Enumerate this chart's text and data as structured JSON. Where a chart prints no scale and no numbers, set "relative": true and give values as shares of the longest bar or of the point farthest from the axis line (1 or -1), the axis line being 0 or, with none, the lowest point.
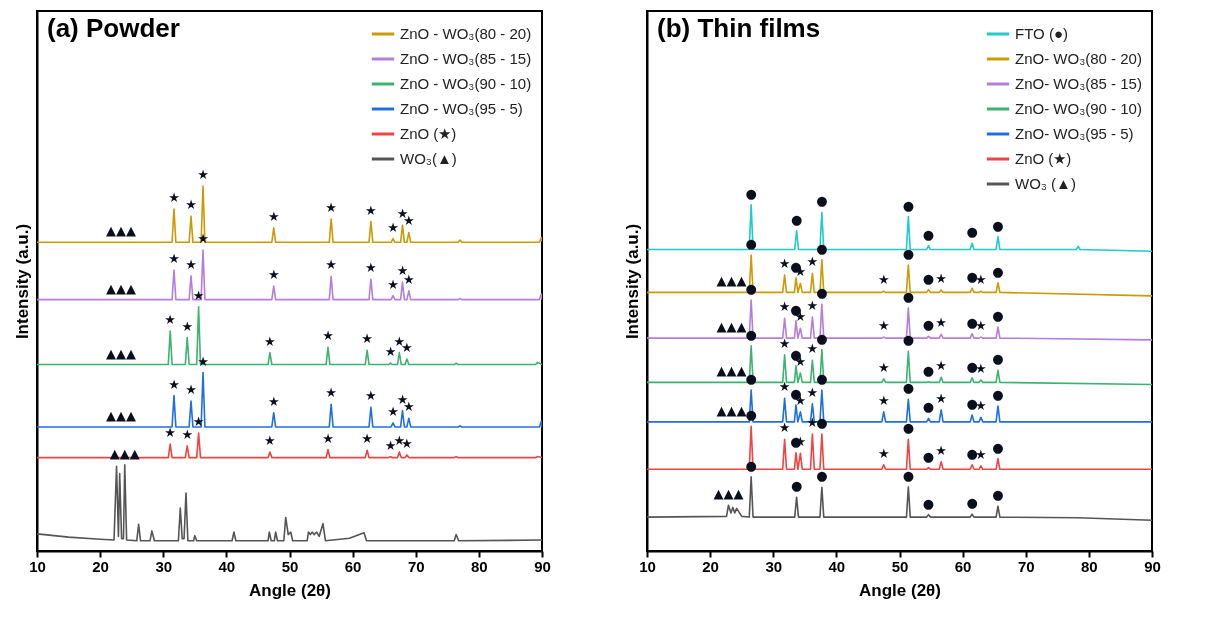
{
  "chart_data": [
    {
      "type": "line",
      "title": "(a) Powder",
      "xlabel": "Angle (2θ)",
      "ylabel": "Intensity (a.u.)",
      "relative": true,
      "tick_labels": "x",
      "legend": "top right",
      "xlim": [
        10,
        90
      ],
      "xticks": [
        10,
        20,
        30,
        40,
        50,
        60,
        70,
        80,
        90
      ],
      "series": [
        {
          "name": "ZnO - WO₃(80 - 20)",
          "color": "#cc9a06",
          "x": [
            10,
            31.4,
            31.7,
            32,
            34.1,
            34.4,
            34.7,
            36,
            36.3,
            36.6,
            47.2,
            47.5,
            47.8,
            56.3,
            56.6,
            56.9,
            62.6,
            62.9,
            63.2,
            66.1,
            66.4,
            66.7,
            67.6,
            67.9,
            68.2,
            68.6,
            68.9,
            69.2,
            76.7,
            77,
            77.3,
            89.6,
            89.9,
            90
          ],
          "values": [
            0.846,
            0.846,
            0.937,
            0.846,
            0.846,
            0.918,
            0.846,
            0.846,
            1.0,
            0.846,
            0.846,
            0.886,
            0.846,
            0.846,
            0.91,
            0.846,
            0.846,
            0.903,
            0.846,
            0.846,
            0.856,
            0.846,
            0.846,
            0.893,
            0.846,
            0.846,
            0.873,
            0.846,
            0.846,
            0.852,
            0.846,
            0.846,
            0.859,
            0.85
          ]
        },
        {
          "name": "ZnO - WO₃(85 - 15)",
          "color": "#b57edc",
          "x": [
            10,
            31.4,
            31.7,
            32,
            34.1,
            34.4,
            34.7,
            36,
            36.3,
            36.6,
            47.2,
            47.5,
            47.8,
            56.3,
            56.6,
            56.9,
            62.6,
            62.9,
            63.2,
            66.1,
            66.4,
            66.7,
            67.6,
            67.9,
            68.2,
            68.6,
            68.9,
            69.2,
            76.7,
            77,
            77.3,
            89.6,
            89.9,
            90
          ],
          "values": [
            0.689,
            0.689,
            0.77,
            0.689,
            0.689,
            0.754,
            0.689,
            0.689,
            0.825,
            0.689,
            0.689,
            0.726,
            0.689,
            0.689,
            0.753,
            0.689,
            0.689,
            0.745,
            0.689,
            0.689,
            0.7,
            0.689,
            0.689,
            0.737,
            0.689,
            0.689,
            0.713,
            0.689,
            0.689,
            0.692,
            0.689,
            0.689,
            0.704,
            0.69
          ]
        },
        {
          "name": "ZnO - WO₃(90 - 10)",
          "color": "#3cb371",
          "x": [
            10,
            30.8,
            31.1,
            31.4,
            33.5,
            33.8,
            34.1,
            35.3,
            35.6,
            35.9,
            46.6,
            46.9,
            47.2,
            55.8,
            56.1,
            56.4,
            62,
            62.3,
            62.6,
            65.7,
            66,
            66.3,
            67.1,
            67.4,
            67.7,
            68.3,
            68.6,
            68.9,
            76.1,
            76.4,
            76.7,
            89,
            89.3,
            90
          ],
          "values": [
            0.511,
            0.511,
            0.603,
            0.511,
            0.511,
            0.585,
            0.511,
            0.511,
            0.669,
            0.511,
            0.511,
            0.544,
            0.511,
            0.511,
            0.558,
            0.511,
            0.511,
            0.55,
            0.511,
            0.511,
            0.515,
            0.511,
            0.511,
            0.544,
            0.511,
            0.511,
            0.526,
            0.511,
            0.511,
            0.515,
            0.511,
            0.511,
            0.517,
            0.511
          ]
        },
        {
          "name": "ZnO - WO₃(95 - 5)",
          "color": "#1f6fe0",
          "x": [
            10,
            31.4,
            31.7,
            32,
            34.1,
            34.4,
            34.7,
            36,
            36.3,
            36.6,
            47.2,
            47.5,
            47.8,
            56.3,
            56.6,
            56.9,
            62.6,
            62.9,
            63.2,
            66.1,
            66.4,
            66.7,
            67.6,
            67.9,
            68.2,
            68.6,
            68.9,
            69.2,
            76.7,
            77,
            77.3,
            89.6,
            89.9,
            90
          ],
          "values": [
            0.34,
            0.34,
            0.426,
            0.34,
            0.34,
            0.411,
            0.34,
            0.34,
            0.489,
            0.34,
            0.34,
            0.379,
            0.34,
            0.34,
            0.402,
            0.34,
            0.34,
            0.394,
            0.34,
            0.34,
            0.351,
            0.34,
            0.34,
            0.385,
            0.34,
            0.34,
            0.364,
            0.34,
            0.34,
            0.343,
            0.34,
            0.34,
            0.356,
            0.34
          ]
        },
        {
          "name": "ZnO (★)",
          "color": "#ef4444",
          "x": [
            10,
            30.8,
            31.1,
            31.4,
            33.5,
            33.8,
            34.1,
            35.3,
            35.6,
            35.9,
            46.6,
            46.9,
            47.2,
            55.8,
            56.1,
            56.4,
            62,
            62.3,
            62.6,
            65.7,
            66,
            66.3,
            67.1,
            67.4,
            67.7,
            68.3,
            68.6,
            68.9,
            76.1,
            76.4,
            76.7,
            89,
            89.3,
            90
          ],
          "values": [
            0.256,
            0.256,
            0.293,
            0.256,
            0.256,
            0.288,
            0.256,
            0.256,
            0.323,
            0.256,
            0.256,
            0.271,
            0.256,
            0.256,
            0.278,
            0.256,
            0.256,
            0.276,
            0.256,
            0.256,
            0.258,
            0.256,
            0.256,
            0.271,
            0.256,
            0.256,
            0.263,
            0.256,
            0.256,
            0.258,
            0.256,
            0.256,
            0.259,
            0.256
          ]
        },
        {
          "name": "WO₃(▲)",
          "color": "#555555",
          "x": [
            10,
            15,
            20,
            22.2,
            22.6,
            22.9,
            23.1,
            23.4,
            23.7,
            23.9,
            24.2,
            25.8,
            26.1,
            26.4,
            27.9,
            28.2,
            28.6,
            32.4,
            32.7,
            33,
            33.3,
            33.6,
            33.9,
            34.8,
            35,
            35.3,
            40.9,
            41.2,
            41.5,
            46.6,
            46.8,
            47.1,
            47.6,
            47.8,
            48.1,
            49.1,
            49.4,
            49.8,
            50.2,
            50.5,
            52.8,
            53,
            53.3,
            53.6,
            53.9,
            54.3,
            54.7,
            55.3,
            55.7,
            59.5,
            61.8,
            62.2,
            76.1,
            76.4,
            76.8,
            90
          ],
          "values": [
            0.047,
            0.038,
            0.032,
            0.03,
            0.232,
            0.04,
            0.212,
            0.034,
            0.034,
            0.236,
            0.03,
            0.028,
            0.073,
            0.028,
            0.028,
            0.055,
            0.028,
            0.028,
            0.118,
            0.034,
            0.034,
            0.159,
            0.028,
            0.028,
            0.042,
            0.028,
            0.028,
            0.052,
            0.028,
            0.028,
            0.052,
            0.028,
            0.028,
            0.052,
            0.028,
            0.028,
            0.092,
            0.045,
            0.052,
            0.028,
            0.028,
            0.052,
            0.045,
            0.052,
            0.045,
            0.052,
            0.04,
            0.075,
            0.028,
            0.035,
            0.05,
            0.028,
            0.028,
            0.045,
            0.028,
            0.03
          ]
        }
      ],
      "annotations": [
        {
          "text": "▲▲▲",
          "x": 23.3,
          "y": 0.846
        },
        {
          "text": "★",
          "x": 31.7,
          "y": 0.937
        },
        {
          "text": "★",
          "x": 34.4,
          "y": 0.918
        },
        {
          "text": "★",
          "x": 36.3,
          "y": 1.0
        },
        {
          "text": "★",
          "x": 47.5,
          "y": 0.886
        },
        {
          "text": "★",
          "x": 56.6,
          "y": 0.91
        },
        {
          "text": "★",
          "x": 62.9,
          "y": 0.903
        },
        {
          "text": "★",
          "x": 66.4,
          "y": 0.856
        },
        {
          "text": "★",
          "x": 67.9,
          "y": 0.893
        },
        {
          "text": "★",
          "x": 68.9,
          "y": 0.873
        },
        {
          "text": "▲▲▲",
          "x": 23.3,
          "y": 0.689
        },
        {
          "text": "★",
          "x": 31.7,
          "y": 0.77
        },
        {
          "text": "★",
          "x": 34.4,
          "y": 0.754
        },
        {
          "text": "★",
          "x": 36.3,
          "y": 0.825
        },
        {
          "text": "★",
          "x": 47.5,
          "y": 0.726
        },
        {
          "text": "★",
          "x": 56.6,
          "y": 0.753
        },
        {
          "text": "★",
          "x": 62.9,
          "y": 0.745
        },
        {
          "text": "★",
          "x": 66.4,
          "y": 0.7
        },
        {
          "text": "★",
          "x": 67.9,
          "y": 0.737
        },
        {
          "text": "★",
          "x": 68.9,
          "y": 0.713
        },
        {
          "text": "▲▲▲",
          "x": 23.3,
          "y": 0.511
        },
        {
          "text": "★",
          "x": 31.1,
          "y": 0.603
        },
        {
          "text": "★",
          "x": 33.8,
          "y": 0.585
        },
        {
          "text": "★",
          "x": 35.6,
          "y": 0.669
        },
        {
          "text": "★",
          "x": 46.9,
          "y": 0.544
        },
        {
          "text": "★",
          "x": 56.1,
          "y": 0.558
        },
        {
          "text": "★",
          "x": 62.3,
          "y": 0.55
        },
        {
          "text": "★",
          "x": 66,
          "y": 0.515
        },
        {
          "text": "★",
          "x": 67.4,
          "y": 0.544
        },
        {
          "text": "★",
          "x": 68.6,
          "y": 0.526
        },
        {
          "text": "▲▲▲",
          "x": 23.3,
          "y": 0.34
        },
        {
          "text": "★",
          "x": 31.7,
          "y": 0.426
        },
        {
          "text": "★",
          "x": 34.4,
          "y": 0.411
        },
        {
          "text": "★",
          "x": 36.3,
          "y": 0.489
        },
        {
          "text": "★",
          "x": 47.5,
          "y": 0.379
        },
        {
          "text": "★",
          "x": 56.6,
          "y": 0.402
        },
        {
          "text": "★",
          "x": 62.9,
          "y": 0.394
        },
        {
          "text": "★",
          "x": 66.4,
          "y": 0.351
        },
        {
          "text": "★",
          "x": 67.9,
          "y": 0.385
        },
        {
          "text": "★",
          "x": 68.9,
          "y": 0.364
        },
        {
          "text": "★",
          "x": 31.1,
          "y": 0.293
        },
        {
          "text": "★",
          "x": 33.8,
          "y": 0.288
        },
        {
          "text": "★",
          "x": 35.6,
          "y": 0.323
        },
        {
          "text": "★",
          "x": 46.9,
          "y": 0.271
        },
        {
          "text": "★",
          "x": 56.1,
          "y": 0.278
        },
        {
          "text": "★",
          "x": 62.3,
          "y": 0.276
        },
        {
          "text": "★",
          "x": 66,
          "y": 0.258
        },
        {
          "text": "★",
          "x": 67.4,
          "y": 0.271
        },
        {
          "text": "★",
          "x": 68.6,
          "y": 0.263
        },
        {
          "text": "▲▲▲",
          "x": 23.9,
          "y": 0.236
        }
      ]
    },
    {
      "type": "line",
      "title": "(b) Thin films",
      "xlabel": "Angle (2θ)",
      "ylabel": "Intensity (a.u.)",
      "relative": true,
      "tick_labels": "x",
      "legend": "top right",
      "xlim": [
        10,
        90
      ],
      "xticks": [
        10,
        20,
        30,
        40,
        50,
        60,
        70,
        80,
        90
      ],
      "x": [
        10,
        26.2,
        26.5,
        26.8,
        31.5,
        31.8,
        32.1,
        33.35,
        33.6,
        33.9,
        34.3,
        34.6,
        35.9,
        36.2,
        36.5,
        37.4,
        37.7,
        38,
        47.2,
        47.5,
        47.8,
        51.1,
        51.4,
        51.7,
        54.3,
        54.6,
        54.9,
        56.3,
        56.6,
        56.9,
        61.2,
        61.5,
        61.8,
        62.6,
        62.9,
        63.2,
        65.3,
        65.6,
        65.9,
        90
      ],
      "series": [
        {
          "name": "FTO (●)",
          "color": "#1ecbcb",
          "x": [
            10,
            26.2,
            26.5,
            26.8,
            33.4,
            33.7,
            34,
            37.4,
            37.7,
            38,
            51.1,
            51.4,
            51.7,
            54.3,
            54.6,
            54.9,
            61.2,
            61.5,
            61.8,
            65.3,
            65.6,
            65.9,
            78,
            78.3,
            78.6,
            90
          ],
          "values": [
            0.871,
            0.871,
            1.0,
            0.871,
            0.871,
            0.925,
            0.871,
            0.871,
            0.978,
            0.871,
            0.871,
            0.966,
            0.871,
            0.871,
            0.882,
            0.871,
            0.871,
            0.889,
            0.871,
            0.871,
            0.908,
            0.871,
            0.871,
            0.88,
            0.871,
            0.866
          ]
        },
        {
          "name": "ZnO- WO₃(80 - 20)",
          "color": "#cc9a06",
          "values": [
            0.747,
            0.747,
            0.855,
            0.747,
            0.747,
            0.797,
            0.747,
            0.747,
            0.789,
            0.747,
            0.773,
            0.747,
            0.747,
            0.802,
            0.747,
            0.747,
            0.841,
            0.747,
            0.747,
            0.751,
            0.747,
            0.747,
            0.826,
            0.747,
            0.747,
            0.755,
            0.747,
            0.747,
            0.754,
            0.747,
            0.747,
            0.759,
            0.747,
            0.747,
            0.751,
            0.747,
            0.747,
            0.775,
            0.747,
            0.737
          ]
        },
        {
          "name": "ZnO- WO₃(85 - 15)",
          "color": "#b57edc",
          "values": [
            0.615,
            0.615,
            0.725,
            0.615,
            0.615,
            0.672,
            0.615,
            0.615,
            0.665,
            0.615,
            0.643,
            0.615,
            0.615,
            0.676,
            0.615,
            0.615,
            0.713,
            0.615,
            0.615,
            0.618,
            0.615,
            0.615,
            0.702,
            0.615,
            0.615,
            0.62,
            0.615,
            0.615,
            0.626,
            0.615,
            0.615,
            0.628,
            0.615,
            0.615,
            0.618,
            0.615,
            0.615,
            0.647,
            0.615,
            0.61
          ]
        },
        {
          "name": "ZnO- WO₃(90 - 10)",
          "color": "#3cb371",
          "values": [
            0.487,
            0.487,
            0.593,
            0.487,
            0.487,
            0.567,
            0.487,
            0.487,
            0.535,
            0.487,
            0.514,
            0.487,
            0.487,
            0.551,
            0.487,
            0.487,
            0.582,
            0.487,
            0.487,
            0.497,
            0.487,
            0.487,
            0.577,
            0.487,
            0.487,
            0.489,
            0.487,
            0.487,
            0.502,
            0.487,
            0.487,
            0.5,
            0.487,
            0.487,
            0.494,
            0.487,
            0.487,
            0.522,
            0.487,
            0.481
          ]
        },
        {
          "name": "ZnO- WO₃(95 - 5)",
          "color": "#1f6fe0",
          "values": [
            0.373,
            0.373,
            0.465,
            0.373,
            0.373,
            0.441,
            0.373,
            0.373,
            0.422,
            0.373,
            0.402,
            0.373,
            0.373,
            0.425,
            0.373,
            0.373,
            0.465,
            0.373,
            0.373,
            0.402,
            0.373,
            0.373,
            0.438,
            0.373,
            0.373,
            0.383,
            0.373,
            0.373,
            0.408,
            0.373,
            0.373,
            0.393,
            0.373,
            0.373,
            0.386,
            0.373,
            0.373,
            0.419,
            0.373,
            0.373
          ]
        },
        {
          "name": "ZnO (★)",
          "color": "#ef4444",
          "values": [
            0.236,
            0.236,
            0.36,
            0.236,
            0.236,
            0.323,
            0.236,
            0.236,
            0.284,
            0.236,
            0.282,
            0.236,
            0.236,
            0.338,
            0.236,
            0.236,
            0.338,
            0.236,
            0.236,
            0.249,
            0.236,
            0.236,
            0.323,
            0.236,
            0.236,
            0.241,
            0.236,
            0.236,
            0.258,
            0.236,
            0.236,
            0.249,
            0.236,
            0.236,
            0.246,
            0.236,
            0.236,
            0.267,
            0.236,
            0.236
          ]
        },
        {
          "name": "WO₃ (▲)",
          "color": "#555555",
          "x": [
            10,
            22.6,
            22.9,
            23.3,
            23.6,
            23.9,
            24.2,
            25,
            26.2,
            26.5,
            26.8,
            33.4,
            33.7,
            34,
            37.4,
            37.7,
            38,
            51.1,
            51.4,
            51.7,
            54.3,
            54.6,
            54.9,
            61.2,
            61.5,
            61.8,
            65.3,
            65.6,
            65.9,
            78.3,
            90
          ],
          "values": [
            0.098,
            0.1,
            0.132,
            0.11,
            0.126,
            0.11,
            0.123,
            0.1,
            0.098,
            0.214,
            0.098,
            0.098,
            0.155,
            0.098,
            0.098,
            0.184,
            0.098,
            0.098,
            0.185,
            0.098,
            0.098,
            0.105,
            0.098,
            0.098,
            0.106,
            0.098,
            0.098,
            0.129,
            0.098,
            0.096,
            0.089
          ]
        }
      ],
      "annotations": [
        {
          "text": "●",
          "x": 26.5,
          "y": 1.0
        },
        {
          "text": "●",
          "x": 33.7,
          "y": 0.925
        },
        {
          "text": "●",
          "x": 37.7,
          "y": 0.978
        },
        {
          "text": "●",
          "x": 51.4,
          "y": 0.966
        },
        {
          "text": "●",
          "x": 54.6,
          "y": 0.882
        },
        {
          "text": "●",
          "x": 61.5,
          "y": 0.889
        },
        {
          "text": "●",
          "x": 65.6,
          "y": 0.908
        },
        {
          "text": "▲▲▲",
          "x": 23.4,
          "y": 0.747
        },
        {
          "text": "●",
          "x": 26.5,
          "y": 0.855
        },
        {
          "text": "★",
          "x": 31.8,
          "y": 0.797
        },
        {
          "text": "●",
          "x": 33.6,
          "y": 0.789
        },
        {
          "text": "★",
          "x": 34.3,
          "y": 0.773
        },
        {
          "text": "★",
          "x": 36.2,
          "y": 0.802
        },
        {
          "text": "●",
          "x": 37.7,
          "y": 0.841
        },
        {
          "text": "★",
          "x": 47.5,
          "y": 0.751
        },
        {
          "text": "●",
          "x": 51.4,
          "y": 0.826
        },
        {
          "text": "●",
          "x": 54.6,
          "y": 0.755
        },
        {
          "text": "★",
          "x": 56.6,
          "y": 0.754
        },
        {
          "text": "●",
          "x": 61.5,
          "y": 0.759
        },
        {
          "text": "★",
          "x": 62.9,
          "y": 0.751
        },
        {
          "text": "●",
          "x": 65.6,
          "y": 0.775
        },
        {
          "text": "▲▲▲",
          "x": 23.4,
          "y": 0.615
        },
        {
          "text": "●",
          "x": 26.5,
          "y": 0.725
        },
        {
          "text": "★",
          "x": 31.8,
          "y": 0.672
        },
        {
          "text": "●",
          "x": 33.6,
          "y": 0.665
        },
        {
          "text": "★",
          "x": 34.3,
          "y": 0.643
        },
        {
          "text": "★",
          "x": 36.2,
          "y": 0.676
        },
        {
          "text": "●",
          "x": 37.7,
          "y": 0.713
        },
        {
          "text": "★",
          "x": 47.5,
          "y": 0.618
        },
        {
          "text": "●",
          "x": 51.4,
          "y": 0.702
        },
        {
          "text": "●",
          "x": 54.6,
          "y": 0.62
        },
        {
          "text": "★",
          "x": 56.6,
          "y": 0.626
        },
        {
          "text": "●",
          "x": 61.5,
          "y": 0.628
        },
        {
          "text": "★",
          "x": 62.9,
          "y": 0.618
        },
        {
          "text": "●",
          "x": 65.6,
          "y": 0.647
        },
        {
          "text": "▲▲▲",
          "x": 23.4,
          "y": 0.487
        },
        {
          "text": "●",
          "x": 26.5,
          "y": 0.593
        },
        {
          "text": "★",
          "x": 31.8,
          "y": 0.567
        },
        {
          "text": "●",
          "x": 33.6,
          "y": 0.535
        },
        {
          "text": "★",
          "x": 34.3,
          "y": 0.514
        },
        {
          "text": "★",
          "x": 36.2,
          "y": 0.551
        },
        {
          "text": "●",
          "x": 37.7,
          "y": 0.582
        },
        {
          "text": "★",
          "x": 47.5,
          "y": 0.497
        },
        {
          "text": "●",
          "x": 51.4,
          "y": 0.577
        },
        {
          "text": "●",
          "x": 54.6,
          "y": 0.489
        },
        {
          "text": "★",
          "x": 56.6,
          "y": 0.502
        },
        {
          "text": "●",
          "x": 61.5,
          "y": 0.5
        },
        {
          "text": "★",
          "x": 62.9,
          "y": 0.494
        },
        {
          "text": "●",
          "x": 65.6,
          "y": 0.522
        },
        {
          "text": "▲▲▲",
          "x": 23.4,
          "y": 0.373
        },
        {
          "text": "●",
          "x": 26.5,
          "y": 0.465
        },
        {
          "text": "★",
          "x": 31.8,
          "y": 0.441
        },
        {
          "text": "●",
          "x": 33.6,
          "y": 0.422
        },
        {
          "text": "★",
          "x": 34.3,
          "y": 0.402
        },
        {
          "text": "★",
          "x": 36.2,
          "y": 0.425
        },
        {
          "text": "●",
          "x": 37.7,
          "y": 0.465
        },
        {
          "text": "★",
          "x": 47.5,
          "y": 0.402
        },
        {
          "text": "●",
          "x": 51.4,
          "y": 0.438
        },
        {
          "text": "●",
          "x": 54.6,
          "y": 0.383
        },
        {
          "text": "★",
          "x": 56.6,
          "y": 0.408
        },
        {
          "text": "●",
          "x": 61.5,
          "y": 0.393
        },
        {
          "text": "★",
          "x": 62.9,
          "y": 0.386
        },
        {
          "text": "●",
          "x": 65.6,
          "y": 0.419
        },
        {
          "text": "●",
          "x": 26.5,
          "y": 0.36
        },
        {
          "text": "★",
          "x": 31.8,
          "y": 0.323
        },
        {
          "text": "●",
          "x": 33.6,
          "y": 0.284
        },
        {
          "text": "★",
          "x": 34.3,
          "y": 0.282
        },
        {
          "text": "★",
          "x": 36.2,
          "y": 0.338
        },
        {
          "text": "●",
          "x": 37.7,
          "y": 0.338
        },
        {
          "text": "★",
          "x": 47.5,
          "y": 0.249
        },
        {
          "text": "●",
          "x": 51.4,
          "y": 0.323
        },
        {
          "text": "●",
          "x": 54.6,
          "y": 0.241
        },
        {
          "text": "★",
          "x": 56.6,
          "y": 0.258
        },
        {
          "text": "●",
          "x": 61.5,
          "y": 0.249
        },
        {
          "text": "★",
          "x": 62.9,
          "y": 0.246
        },
        {
          "text": "●",
          "x": 65.6,
          "y": 0.267
        },
        {
          "text": "▲▲▲",
          "x": 22.9,
          "y": 0.132
        },
        {
          "text": "●",
          "x": 26.5,
          "y": 0.214
        },
        {
          "text": "●",
          "x": 33.7,
          "y": 0.155
        },
        {
          "text": "●",
          "x": 37.7,
          "y": 0.184
        },
        {
          "text": "●",
          "x": 51.4,
          "y": 0.185
        },
        {
          "text": "●",
          "x": 54.6,
          "y": 0.105
        },
        {
          "text": "●",
          "x": 61.5,
          "y": 0.106
        },
        {
          "text": "●",
          "x": 65.6,
          "y": 0.129
        }
      ]
    }
  ]
}
